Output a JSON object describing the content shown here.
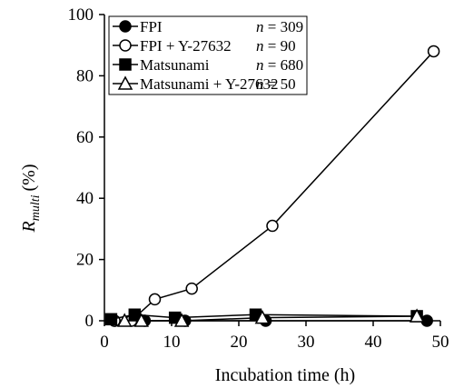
{
  "chart_data": {
    "type": "line",
    "title": "",
    "xlabel": "Incubation time (h)",
    "ylabel": {
      "main": "R",
      "sub": "multi",
      "unit": "(%)"
    },
    "xlim": [
      0,
      50
    ],
    "ylim": [
      0,
      100
    ],
    "xticks": [
      0,
      10,
      20,
      30,
      40,
      50
    ],
    "yticks": [
      0,
      20,
      40,
      60,
      80,
      100
    ],
    "grid": false,
    "legend_position": "top-left",
    "series": [
      {
        "name": "FPI",
        "n_label": "n = 309",
        "marker": "circle",
        "filled": true,
        "x": [
          1.5,
          6,
          12,
          24,
          48
        ],
        "y": [
          0,
          0,
          0,
          0,
          0
        ]
      },
      {
        "name": "FPI + Y-27632",
        "n_label": "n = 90",
        "marker": "circle",
        "filled": false,
        "x": [
          1.5,
          4,
          7.5,
          13,
          25,
          49
        ],
        "y": [
          0,
          0,
          7,
          10.5,
          31,
          88
        ]
      },
      {
        "name": "Matsunami",
        "n_label": "n = 680",
        "marker": "square",
        "filled": true,
        "x": [
          1,
          4.5,
          10.5,
          22.5,
          46.5
        ],
        "y": [
          0.5,
          2,
          1,
          2,
          1.5
        ]
      },
      {
        "name": "Matsunami + Y-27632",
        "n_label": "n = 50",
        "marker": "triangle",
        "filled": false,
        "x": [
          3,
          5.5,
          11.5,
          23.5,
          46.5
        ],
        "y": [
          0,
          0,
          0,
          1,
          1.5
        ]
      }
    ]
  }
}
